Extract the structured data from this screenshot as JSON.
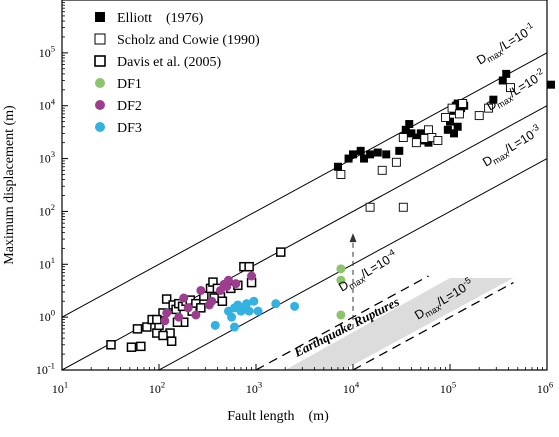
{
  "chart_data": {
    "type": "scatter",
    "title": "",
    "xlabel": "Fault length　(m)",
    "ylabel": "Maximum displacement (m)",
    "xscale": "log",
    "yscale": "log",
    "xlim": [
      10,
      1000000
    ],
    "ylim": [
      0.1,
      1000000
    ],
    "x_ticks": [
      {
        "base": "10",
        "exp": "1"
      },
      {
        "base": "10",
        "exp": "2"
      },
      {
        "base": "10",
        "exp": "3"
      },
      {
        "base": "10",
        "exp": "4"
      },
      {
        "base": "10",
        "exp": "5"
      },
      {
        "base": "10",
        "exp": "6"
      }
    ],
    "y_ticks": [
      {
        "base": "10",
        "exp": "-1"
      },
      {
        "base": "10",
        "exp": "0"
      },
      {
        "base": "10",
        "exp": "1"
      },
      {
        "base": "10",
        "exp": "2"
      },
      {
        "base": "10",
        "exp": "3"
      },
      {
        "base": "10",
        "exp": "4"
      },
      {
        "base": "10",
        "exp": "5"
      }
    ],
    "legend_position": "top-left",
    "series": [
      {
        "name": "Elliott　(1976)",
        "marker": "filled-square",
        "color": "#000000",
        "points": [
          [
            7000,
            700
          ],
          [
            9000,
            1000
          ],
          [
            10000,
            1200
          ],
          [
            12000,
            1400
          ],
          [
            13000,
            1000
          ],
          [
            15000,
            1200
          ],
          [
            18000,
            1300
          ],
          [
            22000,
            1200
          ],
          [
            30000,
            1400
          ],
          [
            35000,
            3500
          ],
          [
            38000,
            4500
          ],
          [
            40000,
            3000
          ],
          [
            45000,
            2500
          ],
          [
            50000,
            3000
          ],
          [
            55000,
            2200
          ],
          [
            60000,
            2000
          ],
          [
            95000,
            3500
          ],
          [
            100000,
            5000
          ],
          [
            110000,
            8000
          ],
          [
            115000,
            10000
          ],
          [
            120000,
            11000
          ],
          [
            130000,
            9000
          ],
          [
            140000,
            10000
          ],
          [
            110000,
            3000
          ],
          [
            120000,
            4000
          ],
          [
            280000,
            13000
          ],
          [
            350000,
            30000
          ],
          [
            380000,
            40000
          ],
          [
            1100000,
            25000
          ]
        ]
      },
      {
        "name": "Scholz and Cowie (1990)",
        "marker": "open-square",
        "color": "#000000",
        "points": [
          [
            7500,
            500
          ],
          [
            20000,
            600
          ],
          [
            28000,
            850
          ],
          [
            33000,
            2500
          ],
          [
            45000,
            2000
          ],
          [
            55000,
            2400
          ],
          [
            60000,
            3500
          ],
          [
            65000,
            2500
          ],
          [
            75000,
            2200
          ],
          [
            90000,
            6000
          ],
          [
            105000,
            9000
          ],
          [
            125000,
            7000
          ],
          [
            135000,
            11000
          ],
          [
            200000,
            6500
          ],
          [
            250000,
            9000
          ],
          [
            420000,
            22000
          ],
          [
            33000,
            120
          ],
          [
            15000,
            120
          ]
        ]
      },
      {
        "name": "Davis  et al. (2005)",
        "marker": "open-square-thick",
        "color": "#000000",
        "points": [
          [
            32,
            0.3
          ],
          [
            52,
            0.27
          ],
          [
            65,
            0.28
          ],
          [
            60,
            0.6
          ],
          [
            75,
            0.65
          ],
          [
            85,
            0.9
          ],
          [
            95,
            0.5
          ],
          [
            100,
            0.7
          ],
          [
            110,
            1.2
          ],
          [
            120,
            2.2
          ],
          [
            130,
            0.5
          ],
          [
            140,
            1.7
          ],
          [
            150,
            1.4
          ],
          [
            160,
            1.8
          ],
          [
            175,
            1.6
          ],
          [
            190,
            2.0
          ],
          [
            210,
            2.1
          ],
          [
            240,
            1.8
          ],
          [
            270,
            1.5
          ],
          [
            290,
            2.5
          ],
          [
            340,
            3.5
          ],
          [
            360,
            4.6
          ],
          [
            400,
            3.5
          ],
          [
            430,
            2.4
          ],
          [
            450,
            2.0
          ],
          [
            550,
            3.5
          ],
          [
            650,
            4.0
          ],
          [
            750,
            9.0
          ],
          [
            850,
            9.0
          ],
          [
            900,
            4.5
          ],
          [
            1800,
            17
          ],
          [
            110,
            0.45
          ],
          [
            180,
            0.8
          ],
          [
            220,
            1.3
          ],
          [
            95,
            0.9
          ],
          [
            135,
            0.35
          ],
          [
            155,
            0.8
          ],
          [
            370,
            2.3
          ]
        ]
      },
      {
        "name": "DF1",
        "marker": "filled-circle",
        "color": "#8cc56d",
        "points": [
          [
            7500,
            8.2
          ],
          [
            7500,
            5.0
          ],
          [
            7500,
            1.1
          ]
        ]
      },
      {
        "name": "DF2",
        "marker": "filled-circle",
        "color": "#9d3d8e",
        "points": [
          [
            120,
            1.2
          ],
          [
            160,
            1.0
          ],
          [
            180,
            2.3
          ],
          [
            200,
            1.5
          ],
          [
            240,
            1.1
          ],
          [
            270,
            3.2
          ],
          [
            330,
            1.7
          ],
          [
            350,
            2.0
          ],
          [
            430,
            3.2
          ],
          [
            470,
            4.2
          ],
          [
            500,
            3.8
          ],
          [
            520,
            5.0
          ],
          [
            620,
            4.3
          ],
          [
            900,
            6.0
          ],
          [
            115,
            0.85
          ]
        ]
      },
      {
        "name": "DF3",
        "marker": "filled-circle",
        "color": "#33b1e0",
        "points": [
          [
            380,
            0.7
          ],
          [
            520,
            1.3
          ],
          [
            560,
            1.0
          ],
          [
            600,
            1.5
          ],
          [
            650,
            1.7
          ],
          [
            700,
            1.3
          ],
          [
            750,
            1.4
          ],
          [
            800,
            1.8
          ],
          [
            850,
            1.3
          ],
          [
            950,
            2.0
          ],
          [
            1050,
            1.3
          ],
          [
            1600,
            1.8
          ],
          [
            2500,
            1.6
          ],
          [
            600,
            0.65
          ]
        ]
      }
    ],
    "reference_lines": [
      {
        "ratio": 0.1,
        "label_main": "D",
        "label_sub": "max",
        "label_rest": "/L=10",
        "label_exp": "-1"
      },
      {
        "ratio": 0.01,
        "label_main": "D",
        "label_sub": "max",
        "label_rest": "/L=10",
        "label_exp": "-2"
      },
      {
        "ratio": 0.001,
        "label_main": "D",
        "label_sub": "max",
        "label_rest": "/L=10",
        "label_exp": "-3"
      },
      {
        "ratio": 0.0001,
        "label_main": "D",
        "label_sub": "max",
        "label_rest": "/L=10",
        "label_exp": "-4"
      },
      {
        "ratio": 1e-05,
        "label_main": "D",
        "label_sub": "max",
        "label_rest": "/L=10",
        "label_exp": "-5"
      }
    ],
    "annotation": "Earthquake Ruptures"
  }
}
